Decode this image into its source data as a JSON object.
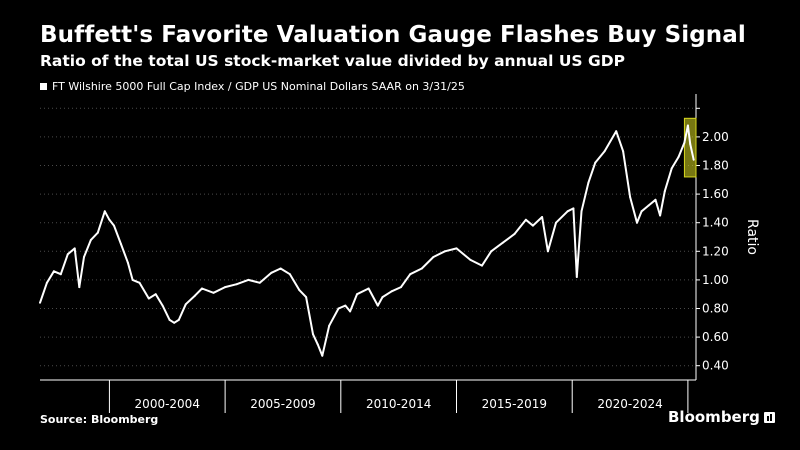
{
  "header": {
    "title": "Buffett's Favorite Valuation Gauge Flashes Buy Signal",
    "subtitle": "Ratio of the total US stock-market value divided by annual US GDP"
  },
  "footer": {
    "source": "Source: Bloomberg",
    "brand": "Bloomberg"
  },
  "colors": {
    "background": "#000000",
    "line": "#ffffff",
    "highlight": "#d8d820",
    "grid": "#4a4a4a"
  },
  "chart_data": {
    "type": "line",
    "legend": "FT Wilshire 5000 Full Cap Index / GDP US Nominal Dollars SAAR on 3/31/25",
    "legend_placement": "top-left",
    "ylabel": "Ratio",
    "y_axis_side": "right",
    "ylim": [
      0.3,
      2.3
    ],
    "yticks": [
      0.4,
      0.6,
      0.8,
      1.0,
      1.2,
      1.4,
      1.6,
      1.8,
      2.0,
      2.2
    ],
    "ytick_labels": [
      "0.40",
      "0.60",
      "0.80",
      "1.00",
      "1.20",
      "1.40",
      "1.60",
      "1.80",
      "2.00",
      ""
    ],
    "grid": "horizontal dotted",
    "xlim": [
      1997.0,
      2025.35
    ],
    "x_category_bands": [
      {
        "label": "2000-2004",
        "from": 2000,
        "to": 2005
      },
      {
        "label": "2005-2009",
        "from": 2005,
        "to": 2010
      },
      {
        "label": "2010-2014",
        "from": 2010,
        "to": 2015
      },
      {
        "label": "2015-2019",
        "from": 2015,
        "to": 2020
      },
      {
        "label": "2020-2024",
        "from": 2020,
        "to": 2025
      }
    ],
    "highlight": {
      "from": 2024.85,
      "to": 2025.35,
      "y_from": 1.72,
      "y_to": 2.13
    },
    "series": [
      {
        "x": [
          1997.0,
          1997.3,
          1997.6,
          1997.9,
          1998.2,
          1998.5,
          1998.7,
          1998.9,
          1999.2,
          1999.5,
          1999.8,
          2000.0,
          2000.2,
          2000.5,
          2000.8,
          2001.0,
          2001.3,
          2001.7,
          2002.0,
          2002.3,
          2002.6,
          2002.8,
          2003.0,
          2003.3,
          2003.7,
          2004.0,
          2004.5,
          2005.0,
          2005.5,
          2006.0,
          2006.5,
          2007.0,
          2007.4,
          2007.8,
          2008.2,
          2008.5,
          2008.8,
          2009.0,
          2009.2,
          2009.5,
          2009.9,
          2010.2,
          2010.4,
          2010.7,
          2011.2,
          2011.6,
          2011.8,
          2012.2,
          2012.6,
          2013.0,
          2013.5,
          2014.0,
          2014.5,
          2015.0,
          2015.6,
          2016.1,
          2016.5,
          2017.0,
          2017.5,
          2018.0,
          2018.3,
          2018.7,
          2018.95,
          2019.3,
          2019.8,
          2020.05,
          2020.2,
          2020.4,
          2020.7,
          2021.0,
          2021.4,
          2021.9,
          2022.2,
          2022.5,
          2022.8,
          2023.0,
          2023.3,
          2023.6,
          2023.8,
          2024.0,
          2024.3,
          2024.6,
          2024.85,
          2025.0,
          2025.1,
          2025.25
        ],
        "y": [
          0.84,
          0.98,
          1.06,
          1.04,
          1.18,
          1.22,
          0.95,
          1.16,
          1.28,
          1.33,
          1.48,
          1.42,
          1.38,
          1.25,
          1.12,
          1.0,
          0.98,
          0.87,
          0.9,
          0.82,
          0.72,
          0.7,
          0.72,
          0.83,
          0.89,
          0.94,
          0.91,
          0.95,
          0.97,
          1.0,
          0.98,
          1.05,
          1.08,
          1.04,
          0.93,
          0.88,
          0.62,
          0.55,
          0.47,
          0.68,
          0.8,
          0.82,
          0.78,
          0.9,
          0.94,
          0.82,
          0.88,
          0.92,
          0.95,
          1.04,
          1.08,
          1.16,
          1.2,
          1.22,
          1.14,
          1.1,
          1.2,
          1.26,
          1.32,
          1.42,
          1.38,
          1.44,
          1.2,
          1.4,
          1.48,
          1.5,
          1.02,
          1.48,
          1.68,
          1.82,
          1.9,
          2.04,
          1.9,
          1.58,
          1.4,
          1.48,
          1.52,
          1.56,
          1.45,
          1.62,
          1.78,
          1.86,
          1.96,
          2.08,
          1.95,
          1.84
        ]
      }
    ]
  }
}
